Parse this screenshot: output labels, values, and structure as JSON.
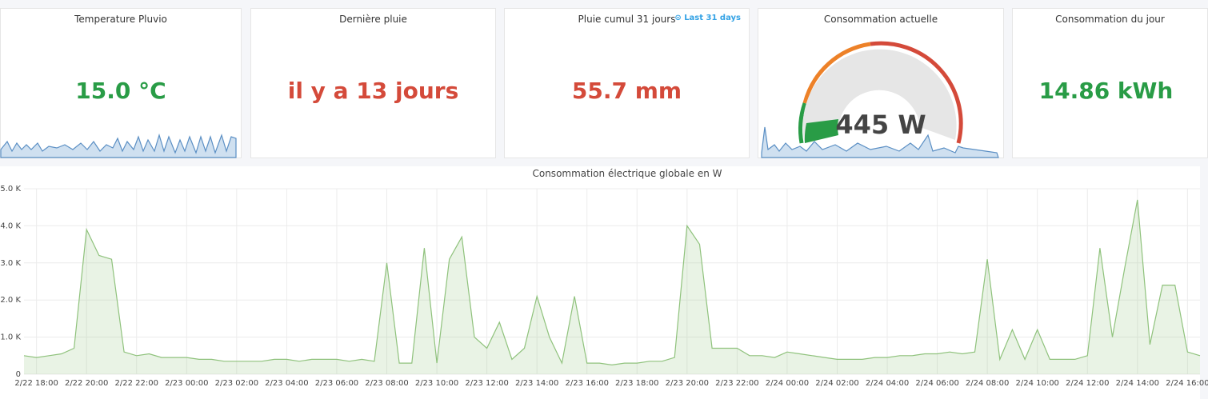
{
  "panels": [
    {
      "title": "Temperature Pluvio",
      "value": "15.0 °C"
    },
    {
      "title": "Dernière pluie",
      "value": "il y a 13 jours"
    },
    {
      "title": "Pluie cumul 31 jours",
      "value": "55.7 mm",
      "time_link": "Last 31 days"
    },
    {
      "title": "Consommation actuelle",
      "value": "445 W"
    },
    {
      "title": "Consommation du jour",
      "value": "14.86 kWh"
    }
  ],
  "chart_data": {
    "type": "line",
    "title": "Consommation électrique globale en W",
    "color": "#8fc27c",
    "fill": true,
    "grid": true,
    "x": [
      "2/22 17:30",
      "2/22 18:00",
      "2/22 18:30",
      "2/22 19:00",
      "2/22 19:30",
      "2/22 20:00",
      "2/22 20:30",
      "2/22 21:00",
      "2/22 21:30",
      "2/22 22:00",
      "2/22 22:30",
      "2/22 23:00",
      "2/22 23:30",
      "2/23 00:00",
      "2/23 00:30",
      "2/23 01:00",
      "2/23 01:30",
      "2/23 02:00",
      "2/23 02:30",
      "2/23 03:00",
      "2/23 03:30",
      "2/23 04:00",
      "2/23 04:30",
      "2/23 05:00",
      "2/23 05:30",
      "2/23 06:00",
      "2/23 06:30",
      "2/23 07:00",
      "2/23 07:30",
      "2/23 08:00",
      "2/23 08:30",
      "2/23 09:00",
      "2/23 09:30",
      "2/23 10:00",
      "2/23 10:30",
      "2/23 11:00",
      "2/23 11:30",
      "2/23 12:00",
      "2/23 12:30",
      "2/23 13:00",
      "2/23 13:30",
      "2/23 14:00",
      "2/23 14:30",
      "2/23 15:00",
      "2/23 15:30",
      "2/23 16:00",
      "2/23 16:30",
      "2/23 17:00",
      "2/23 17:30",
      "2/23 18:00",
      "2/23 18:30",
      "2/23 19:00",
      "2/23 19:30",
      "2/23 20:00",
      "2/23 20:30",
      "2/23 21:00",
      "2/23 21:30",
      "2/23 22:00",
      "2/23 22:30",
      "2/23 23:00",
      "2/23 23:30",
      "2/24 00:00",
      "2/24 00:30",
      "2/24 01:00",
      "2/24 01:30",
      "2/24 02:00",
      "2/24 02:30",
      "2/24 03:00",
      "2/24 03:30",
      "2/24 04:00",
      "2/24 04:30",
      "2/24 05:00",
      "2/24 05:30",
      "2/24 06:00",
      "2/24 06:30",
      "2/24 07:00",
      "2/24 07:30",
      "2/24 08:00",
      "2/24 08:30",
      "2/24 09:00",
      "2/24 09:30",
      "2/24 10:00",
      "2/24 10:30",
      "2/24 11:00",
      "2/24 11:30",
      "2/24 12:00",
      "2/24 12:30",
      "2/24 13:00",
      "2/24 13:30",
      "2/24 14:00",
      "2/24 14:30",
      "2/24 15:00",
      "2/24 15:30",
      "2/24 16:00",
      "2/24 16:30"
    ],
    "values": [
      500,
      450,
      500,
      550,
      700,
      3900,
      3200,
      3100,
      600,
      500,
      550,
      450,
      450,
      450,
      400,
      400,
      350,
      350,
      350,
      350,
      400,
      400,
      350,
      400,
      400,
      400,
      350,
      400,
      350,
      3000,
      300,
      300,
      3400,
      300,
      3100,
      3700,
      1000,
      700,
      1400,
      400,
      700,
      2100,
      1000,
      300,
      2100,
      300,
      300,
      250,
      300,
      300,
      350,
      350,
      450,
      4000,
      3500,
      700,
      700,
      700,
      500,
      500,
      450,
      600,
      550,
      500,
      450,
      400,
      400,
      400,
      450,
      450,
      500,
      500,
      550,
      550,
      600,
      550,
      600,
      3100,
      400,
      1200,
      400,
      1200,
      400,
      400,
      400,
      500,
      3400,
      1000,
      2900,
      4700,
      800,
      2400,
      2400,
      600,
      500
    ],
    "xlim": [
      "2/22 17:30",
      "2/24 16:30"
    ],
    "xticks": [
      "2/22 18:00",
      "2/22 20:00",
      "2/22 22:00",
      "2/23 00:00",
      "2/23 02:00",
      "2/23 04:00",
      "2/23 06:00",
      "2/23 08:00",
      "2/23 10:00",
      "2/23 12:00",
      "2/23 14:00",
      "2/23 16:00",
      "2/23 18:00",
      "2/23 20:00",
      "2/23 22:00",
      "2/24 00:00",
      "2/24 02:00",
      "2/24 04:00",
      "2/24 06:00",
      "2/24 08:00",
      "2/24 10:00",
      "2/24 12:00",
      "2/24 14:00",
      "2/24 16:00"
    ],
    "ylim": [
      0,
      5000
    ],
    "yticks": [
      0,
      {
        "value": 1000,
        "label": "1.0 K"
      },
      {
        "value": 2000,
        "label": "2.0 K"
      },
      {
        "value": 3000,
        "label": "3.0 K"
      },
      {
        "value": 4000,
        "label": "4.0 K"
      },
      {
        "value": 5000,
        "label": "5.0 K"
      }
    ]
  }
}
